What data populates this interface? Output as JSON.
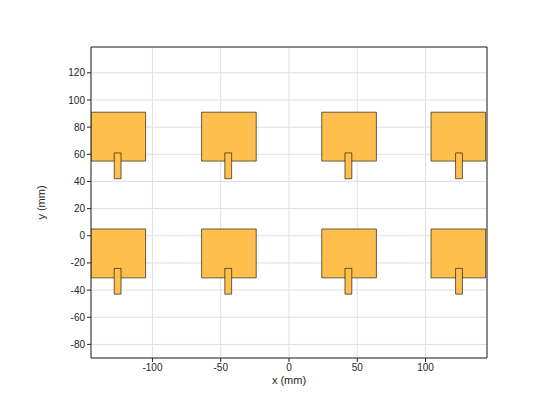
{
  "chart_data": {
    "type": "patch",
    "xlabel": "x (mm)",
    "ylabel": "y (mm)",
    "xlim": [
      -145,
      145
    ],
    "ylim": [
      -90,
      139
    ],
    "xticks": [
      -100,
      -50,
      0,
      50,
      100
    ],
    "yticks": [
      -80,
      -60,
      -40,
      -20,
      0,
      20,
      40,
      60,
      80,
      100,
      120
    ],
    "grid": true,
    "color": "#ffbf4d",
    "patches": [
      {
        "x": [
          -145,
          -105
        ],
        "y": [
          55,
          91
        ]
      },
      {
        "x": [
          -64,
          -24
        ],
        "y": [
          55,
          91
        ]
      },
      {
        "x": [
          24,
          64
        ],
        "y": [
          55,
          91
        ]
      },
      {
        "x": [
          104,
          144
        ],
        "y": [
          55,
          91
        ]
      },
      {
        "x": [
          -145,
          -105
        ],
        "y": [
          -31,
          5
        ]
      },
      {
        "x": [
          -64,
          -24
        ],
        "y": [
          -31,
          5
        ]
      },
      {
        "x": [
          24,
          64
        ],
        "y": [
          -31,
          5
        ]
      },
      {
        "x": [
          104,
          144
        ],
        "y": [
          -31,
          5
        ]
      }
    ],
    "feeds": [
      {
        "x": [
          -128,
          -123
        ],
        "y": [
          42,
          61
        ]
      },
      {
        "x": [
          -47,
          -42
        ],
        "y": [
          42,
          61
        ]
      },
      {
        "x": [
          41,
          46
        ],
        "y": [
          42,
          61
        ]
      },
      {
        "x": [
          122,
          127
        ],
        "y": [
          42,
          61
        ]
      },
      {
        "x": [
          -128,
          -123
        ],
        "y": [
          -43,
          -24
        ]
      },
      {
        "x": [
          -47,
          -42
        ],
        "y": [
          -43,
          -24
        ]
      },
      {
        "x": [
          41,
          46
        ],
        "y": [
          -43,
          -24
        ]
      },
      {
        "x": [
          122,
          127
        ],
        "y": [
          -43,
          -24
        ]
      }
    ]
  }
}
